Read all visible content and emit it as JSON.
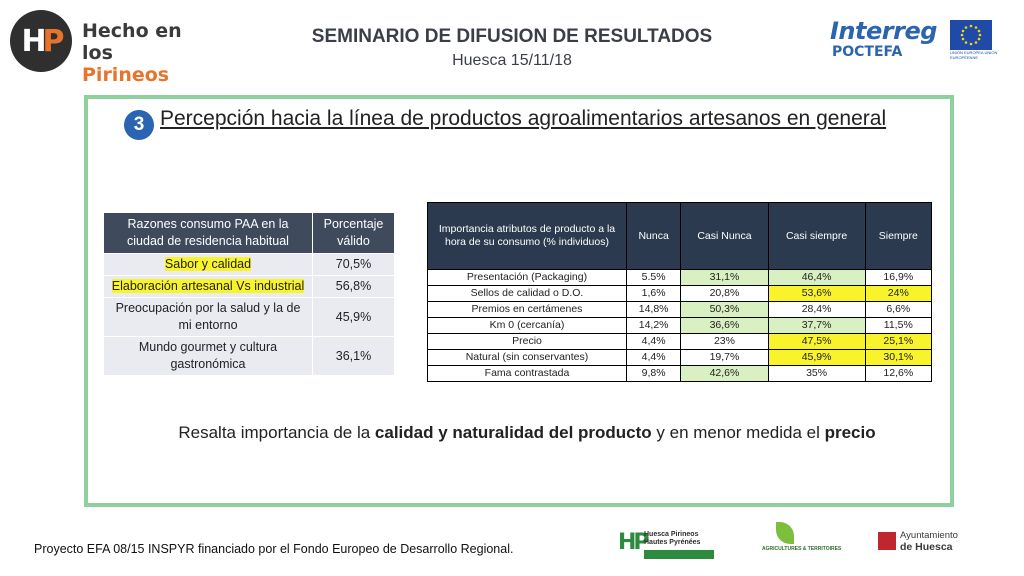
{
  "header": {
    "logo_line1": "Hecho en los",
    "logo_line2": "Pirineos",
    "title": "SEMINARIO DE DIFUSION DE RESULTADOS",
    "subtitle": "Huesca 15/11/18",
    "interreg_name": "Interreg",
    "interreg_sub": "POCTEFA",
    "eu_text": "UNIÓN EUROPEA UNION EUROPÉENNE"
  },
  "section": {
    "number": "3",
    "title": "Percepción hacia la línea de productos agroalimentarios artesanos en general"
  },
  "reasons_table": {
    "headers": [
      "Razones consumo PAA en la ciudad de residencia habitual",
      "Porcentaje válido"
    ],
    "rows": [
      {
        "reason": "Sabor y calidad",
        "value": "70,5%"
      },
      {
        "reason": "Elaboración artesanal Vs industrial",
        "value": "56,8%"
      },
      {
        "reason": "Preocupación por la salud y la de mi entorno",
        "value": "45,9%"
      },
      {
        "reason": "Mundo gourmet y cultura gastronómica",
        "value": "36,1%"
      }
    ]
  },
  "attributes_table": {
    "headers": [
      "Importancia atributos de producto a la hora de su consumo (% individuos)",
      "Nunca",
      "Casi Nunca",
      "Casi siempre",
      "Siempre"
    ],
    "rows": [
      {
        "attr": "Presentación (Packaging)",
        "nunca": "5.5%",
        "casi_nunca": "31,1%",
        "casi_siempre": "46,4%",
        "siempre": "16,9%"
      },
      {
        "attr": "Sellos de calidad o D.O.",
        "nunca": "1,6%",
        "casi_nunca": "20,8%",
        "casi_siempre": "53,6%",
        "siempre": "24%"
      },
      {
        "attr": "Premios en certámenes",
        "nunca": "14,8%",
        "casi_nunca": "50,3%",
        "casi_siempre": "28,4%",
        "siempre": "6,6%"
      },
      {
        "attr": "Km 0 (cercanía)",
        "nunca": "14,2%",
        "casi_nunca": "36,6%",
        "casi_siempre": "37,7%",
        "siempre": "11,5%"
      },
      {
        "attr": "Precio",
        "nunca": "4,4%",
        "casi_nunca": "23%",
        "casi_siempre": "47,5%",
        "siempre": "25,1%"
      },
      {
        "attr": "Natural (sin conservantes)",
        "nunca": "4,4%",
        "casi_nunca": "19,7%",
        "casi_siempre": "45,9%",
        "siempre": "30,1%"
      },
      {
        "attr": "Fama contrastada",
        "nunca": "9,8%",
        "casi_nunca": "42,6%",
        "casi_siempre": "35%",
        "siempre": "12,6%"
      }
    ]
  },
  "conclusion": {
    "part1": "Resalta importancia de la ",
    "bold1": "calidad y naturalidad del producto",
    "part2": " y en menor medida el ",
    "bold2": "precio"
  },
  "footer": {
    "text": "Proyecto EFA 08/15 INSPYR financiado por el Fondo Europeo de Desarrollo Regional.",
    "hp_line1": "Huesca Pirineos",
    "hp_line2": "Hautes Pyrénées",
    "agri_text": "AGRICULTURES & TERRITOIRES",
    "ayto_line1": "Ayuntamiento",
    "ayto_line2": "de Huesca"
  },
  "colors": {
    "frame": "#8fd19e",
    "header_dark": "#3f4a5c",
    "highlight_yellow": "#f8f32b",
    "highlight_green": "#d9f0c2",
    "brand_orange": "#e8742c",
    "interreg_blue": "#2b64b0"
  }
}
